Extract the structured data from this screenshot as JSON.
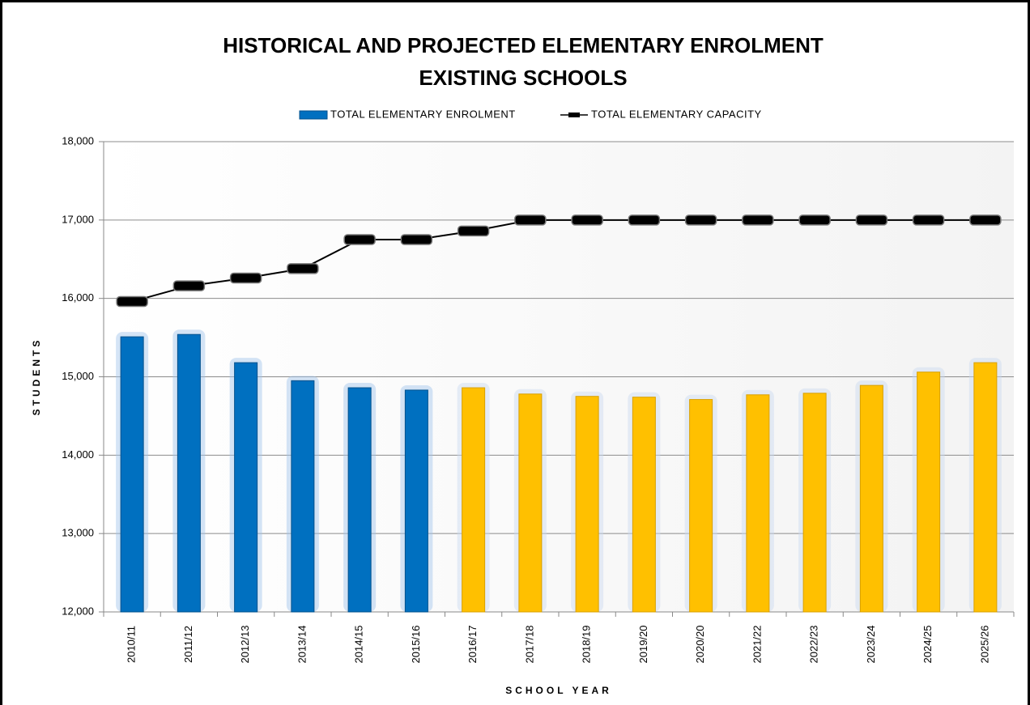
{
  "chart_data": {
    "type": "bar",
    "title": "HISTORICAL AND PROJECTED ELEMENTARY ENROLMENT",
    "subtitle": "EXISTING SCHOOLS",
    "x_label": "SCHOOL YEAR",
    "y_label": "STUDENTS",
    "categories": [
      "2010/11",
      "2011/12",
      "2012/13",
      "2013/14",
      "2014/15",
      "2015/16",
      "2016/17",
      "2017/18",
      "2018/19",
      "2019/20",
      "2020/20",
      "2021/22",
      "2022/23",
      "2023/24",
      "2024/25",
      "2025/26"
    ],
    "series": [
      {
        "name": "TOTAL ELEMENTARY ENROLMENT",
        "type": "bar",
        "color": "#0070c0",
        "colors": [
          "#0070c0",
          "#0070c0",
          "#0070c0",
          "#0070c0",
          "#0070c0",
          "#0070c0",
          "#ffc000",
          "#ffc000",
          "#ffc000",
          "#ffc000",
          "#ffc000",
          "#ffc000",
          "#ffc000",
          "#ffc000",
          "#ffc000",
          "#ffc000"
        ],
        "values": [
          15510,
          15540,
          15180,
          14950,
          14860,
          14830,
          14860,
          14780,
          14750,
          14740,
          14710,
          14770,
          14790,
          14890,
          15060,
          15180
        ]
      },
      {
        "name": "TOTAL ELEMENTARY CAPACITY",
        "type": "line",
        "color": "#000000",
        "values": [
          15960,
          16160,
          16260,
          16380,
          16750,
          16750,
          16860,
          17000,
          17000,
          17000,
          17000,
          17000,
          17000,
          17000,
          17000,
          17000
        ]
      }
    ],
    "ylim": [
      12000,
      18000
    ],
    "yticks": [
      {
        "value": 12000,
        "label": "12,000"
      },
      {
        "value": 13000,
        "label": "13,000"
      },
      {
        "value": 14000,
        "label": "14,000"
      },
      {
        "value": 15000,
        "label": "15,000"
      },
      {
        "value": 16000,
        "label": "16,000"
      },
      {
        "value": 17000,
        "label": "17,000"
      },
      {
        "value": 18000,
        "label": "18,000"
      }
    ],
    "grid": true,
    "legend": "top"
  }
}
